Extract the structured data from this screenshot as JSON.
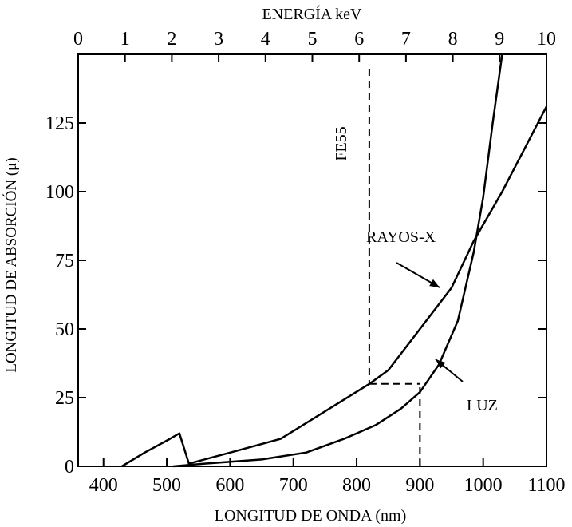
{
  "chart_data": {
    "type": "line",
    "xlabel": "LONGITUD DE ONDA (nm)",
    "x2label": "ENERGÍA keV",
    "ylabel": "LONGITUD DE ABSORCIÓN (μ)",
    "xlim": [
      360,
      1100
    ],
    "ylim": [
      0,
      150
    ],
    "xticks": [
      400,
      500,
      600,
      700,
      800,
      900,
      1000,
      1100
    ],
    "yticks": [
      0,
      25,
      50,
      75,
      100,
      125
    ],
    "x2ticks": [
      0,
      1,
      2,
      3,
      4,
      5,
      6,
      7,
      8,
      9,
      10
    ],
    "grid": false,
    "series": [
      {
        "name": "RAYOS-X",
        "points": [
          [
            429,
            0
          ],
          [
            465,
            5
          ],
          [
            505,
            10
          ],
          [
            520,
            12
          ],
          [
            535,
            1
          ],
          [
            600,
            5
          ],
          [
            680,
            10
          ],
          [
            750,
            20
          ],
          [
            820,
            30
          ],
          [
            850,
            35
          ],
          [
            900,
            50
          ],
          [
            950,
            65
          ],
          [
            985,
            82
          ],
          [
            1030,
            100
          ],
          [
            1100,
            131
          ]
        ]
      },
      {
        "name": "LUZ",
        "points": [
          [
            510,
            0
          ],
          [
            560,
            1
          ],
          [
            650,
            2.5
          ],
          [
            720,
            5
          ],
          [
            780,
            10
          ],
          [
            830,
            15
          ],
          [
            870,
            21
          ],
          [
            900,
            27
          ],
          [
            930,
            37
          ],
          [
            960,
            53
          ],
          [
            985,
            78
          ],
          [
            1000,
            98
          ],
          [
            1015,
            125
          ],
          [
            1030,
            150
          ]
        ]
      }
    ],
    "markers": [
      {
        "label": "FE55",
        "x": 820
      },
      {
        "type": "dashed-horizontal",
        "y": 30,
        "x_from": 820,
        "x_to": 900
      },
      {
        "type": "dashed-vertical",
        "x": 900,
        "y_from": 0,
        "y_to": 30
      }
    ],
    "annotations": [
      {
        "text": "RAYOS-X",
        "points_to": "RAYOS-X"
      },
      {
        "text": "LUZ",
        "points_to": "LUZ"
      }
    ]
  }
}
